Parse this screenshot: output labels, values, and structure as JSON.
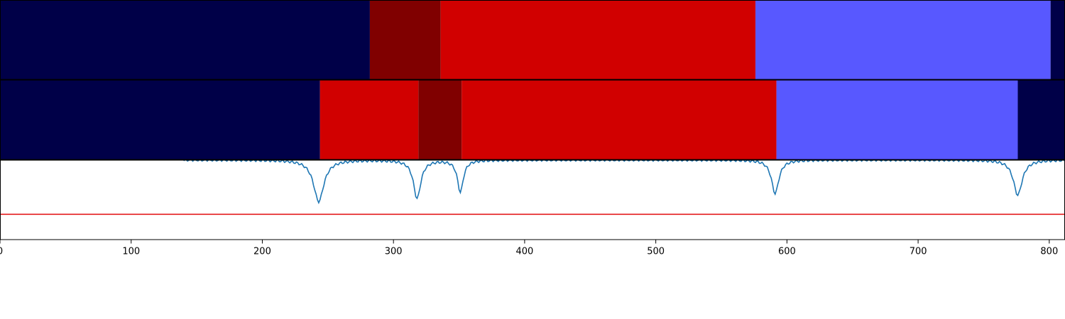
{
  "chart_data": {
    "type": "segmentation-timeline",
    "xlim": [
      0,
      812
    ],
    "x_ticks": [
      0,
      100,
      200,
      300,
      400,
      500,
      600,
      700,
      800
    ],
    "x_tick_labels": [
      "0",
      "100",
      "200",
      "300",
      "400",
      "500",
      "600",
      "700",
      "800"
    ],
    "colors": {
      "dark_navy": "#000048",
      "dark_red": "#800000",
      "red": "#d10000",
      "blue": "#5858ff",
      "threshold": "#e31a1c",
      "signal": "#1f77b4"
    },
    "tracks": [
      {
        "segments": [
          {
            "start": 0,
            "end": 282,
            "color": "dark_navy"
          },
          {
            "start": 282,
            "end": 336,
            "color": "dark_red"
          },
          {
            "start": 336,
            "end": 576,
            "color": "red"
          },
          {
            "start": 576,
            "end": 801,
            "color": "blue"
          },
          {
            "start": 801,
            "end": 812,
            "color": "dark_navy"
          }
        ]
      },
      {
        "segments": [
          {
            "start": 0,
            "end": 244,
            "color": "dark_navy"
          },
          {
            "start": 244,
            "end": 319,
            "color": "red"
          },
          {
            "start": 319,
            "end": 352,
            "color": "dark_red"
          },
          {
            "start": 352,
            "end": 592,
            "color": "red"
          },
          {
            "start": 592,
            "end": 776,
            "color": "blue"
          },
          {
            "start": 776,
            "end": 812,
            "color": "dark_navy"
          }
        ]
      }
    ],
    "signal_panel": {
      "ylim": [
        0,
        1
      ],
      "threshold": 0.32,
      "baseline": 1.0,
      "signal_start": 140,
      "dips": [
        {
          "x": 243,
          "depth": 0.52,
          "width": 7
        },
        {
          "x": 318,
          "depth": 0.48,
          "width": 5
        },
        {
          "x": 351,
          "depth": 0.4,
          "width": 4
        },
        {
          "x": 591,
          "depth": 0.42,
          "width": 5
        },
        {
          "x": 776,
          "depth": 0.44,
          "width": 6
        }
      ]
    }
  }
}
